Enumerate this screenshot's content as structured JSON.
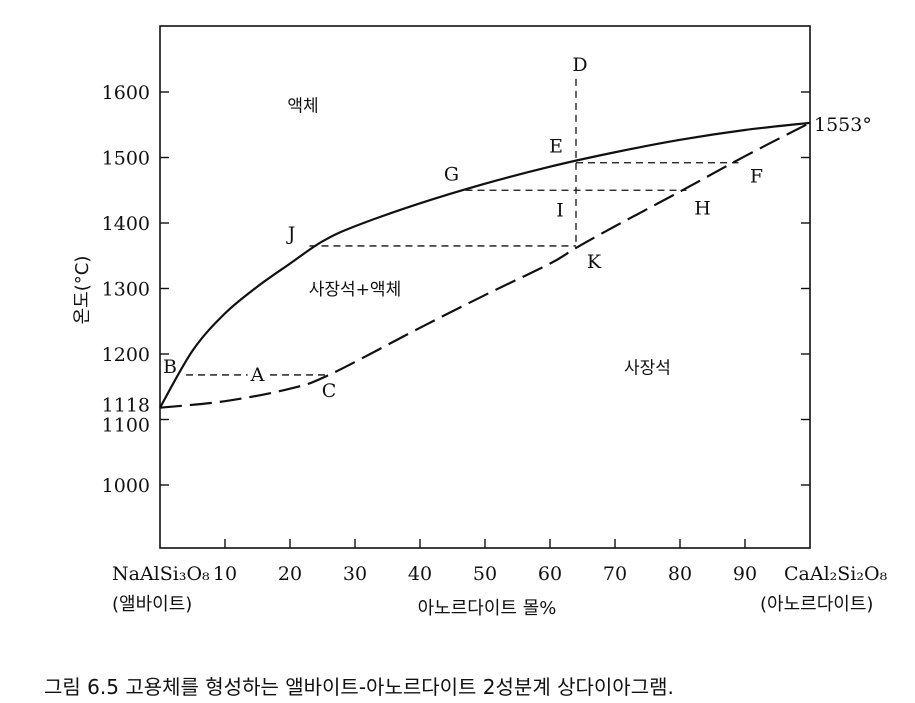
{
  "caption": "그림 6.5  고용체를 형성하는 앨바이트-아노르다이트 2성분계 상다이아그램.",
  "chart_data": {
    "type": "line",
    "xlabel": "아노르다이트 몰%",
    "ylabel": "온도(°C)",
    "xlim": [
      0,
      100
    ],
    "ylim": [
      920,
      1700
    ],
    "x_ticks": [
      10,
      20,
      30,
      40,
      50,
      60,
      70,
      80,
      90
    ],
    "y_ticks": [
      1000,
      1100,
      1200,
      1300,
      1400,
      1500,
      1600
    ],
    "y_extra_tick": 1118,
    "left_end": {
      "formula": "NaAlSi₃O₈",
      "name": "(앨바이트)"
    },
    "right_end": {
      "formula": "CaAl₂Si₂O₈",
      "name": "(아노르다이트)"
    },
    "right_end_temp_label": "1553°",
    "series": [
      {
        "style": "solid",
        "x": [
          0,
          5,
          10,
          15,
          20,
          25,
          30,
          40,
          50,
          60,
          70,
          80,
          90,
          100
        ],
        "y": [
          1118,
          1205,
          1262,
          1303,
          1338,
          1372,
          1395,
          1430,
          1460,
          1486,
          1508,
          1527,
          1542,
          1553
        ]
      },
      {
        "style": "dashed",
        "x": [
          0,
          10,
          20,
          26,
          40,
          50,
          60,
          64,
          70,
          80,
          90,
          100
        ],
        "y": [
          1118,
          1128,
          1147,
          1168,
          1240,
          1290,
          1338,
          1362,
          1395,
          1448,
          1502,
          1553
        ]
      }
    ],
    "tie_lines": [
      {
        "x": [
          4,
          26
        ],
        "y": [
          1168,
          1168
        ]
      },
      {
        "x": [
          23,
          64
        ],
        "y": [
          1365,
          1365
        ]
      },
      {
        "x": [
          47,
          81
        ],
        "y": [
          1450,
          1450
        ]
      },
      {
        "x": [
          64,
          89
        ],
        "y": [
          1492,
          1492
        ]
      },
      {
        "x": [
          64,
          64
        ],
        "y": [
          1620,
          1365
        ]
      }
    ],
    "points": [
      {
        "label": "D",
        "x": 64,
        "y": 1620
      },
      {
        "label": "E",
        "x": 64,
        "y": 1492
      },
      {
        "label": "F",
        "x": 89,
        "y": 1492
      },
      {
        "label": "G",
        "x": 47,
        "y": 1450
      },
      {
        "label": "H",
        "x": 81,
        "y": 1450
      },
      {
        "label": "I",
        "x": 64,
        "y": 1450
      },
      {
        "label": "J",
        "x": 23,
        "y": 1365
      },
      {
        "label": "K",
        "x": 64,
        "y": 1365
      },
      {
        "label": "A",
        "x": 15,
        "y": 1168
      },
      {
        "label": "B",
        "x": 4,
        "y": 1168
      },
      {
        "label": "C",
        "x": 26,
        "y": 1168
      }
    ],
    "regions": [
      {
        "label": "액체",
        "x": 22,
        "y": 1570
      },
      {
        "label": "사장석+액체",
        "x": 30,
        "y": 1290
      },
      {
        "label": "사장석",
        "x": 75,
        "y": 1170
      }
    ]
  }
}
